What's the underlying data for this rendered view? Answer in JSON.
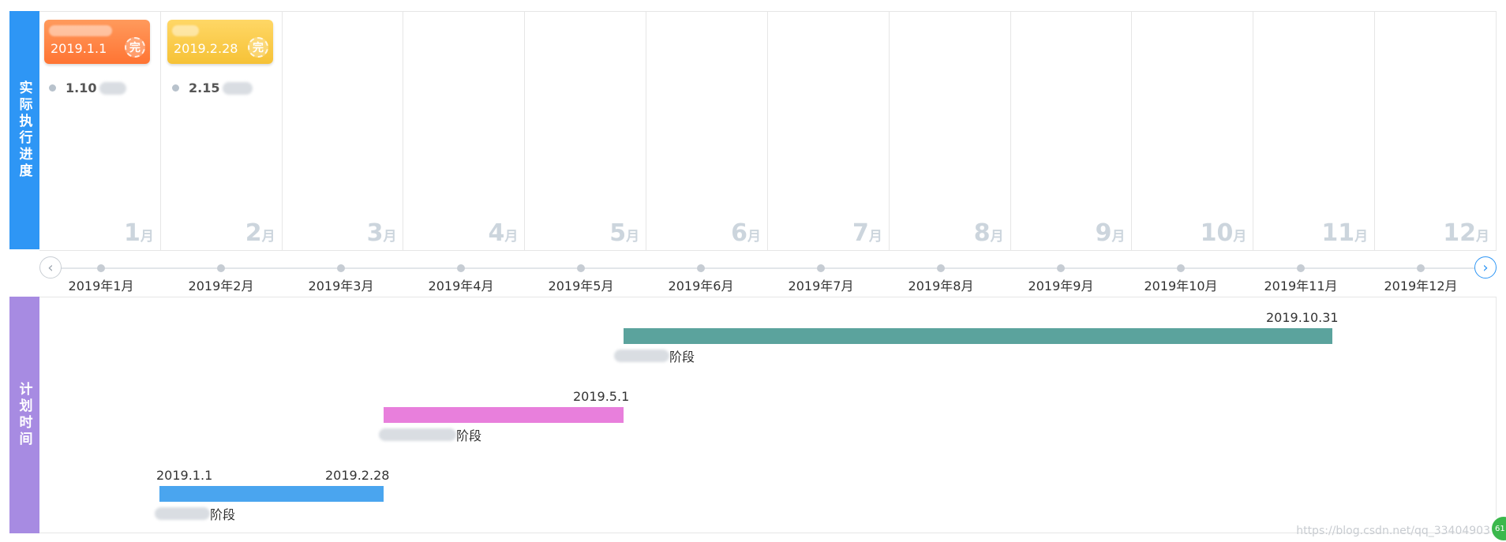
{
  "sections": {
    "actual": "实际执行进度",
    "plan": "计划时间"
  },
  "months": [
    {
      "num": "1",
      "unit": "月"
    },
    {
      "num": "2",
      "unit": "月"
    },
    {
      "num": "3",
      "unit": "月"
    },
    {
      "num": "4",
      "unit": "月"
    },
    {
      "num": "5",
      "unit": "月"
    },
    {
      "num": "6",
      "unit": "月"
    },
    {
      "num": "7",
      "unit": "月"
    },
    {
      "num": "8",
      "unit": "月"
    },
    {
      "num": "9",
      "unit": "月"
    },
    {
      "num": "10",
      "unit": "月"
    },
    {
      "num": "11",
      "unit": "月"
    },
    {
      "num": "12",
      "unit": "月"
    }
  ],
  "exec_cards": [
    {
      "date": "2019.1.1",
      "badge": "完",
      "color": "#ff7a3d",
      "note": "1.10"
    },
    {
      "date": "2019.2.28",
      "badge": "完",
      "color": "#f8c63e",
      "note": "2.15"
    }
  ],
  "timeline": {
    "labels": [
      "2019年1月",
      "2019年2月",
      "2019年3月",
      "2019年4月",
      "2019年5月",
      "2019年6月",
      "2019年7月",
      "2019年8月",
      "2019年9月",
      "2019年10月",
      "2019年11月",
      "2019年12月"
    ],
    "prev_icon": "chevron-left-icon",
    "next_icon": "chevron-right-icon"
  },
  "plan_bars": [
    {
      "end_label": "2019.10.31",
      "stage": "阶段",
      "color": "#5ba39d"
    },
    {
      "end_label": "2019.5.1",
      "stage": "阶段",
      "color": "#e87fdc"
    },
    {
      "start_label": "2019.1.1",
      "end_label": "2019.2.28",
      "stage": "阶段",
      "color": "#4aa5ef"
    }
  ],
  "watermark": "https://blog.csdn.net/qq_33404903",
  "corner_badge": "61"
}
